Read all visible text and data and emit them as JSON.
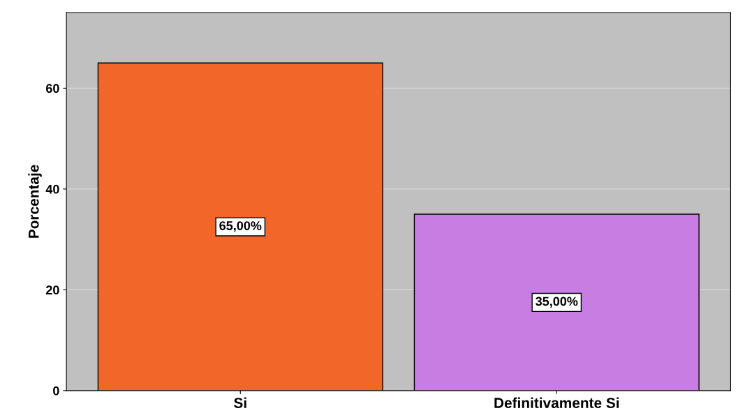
{
  "chart_data": {
    "type": "bar",
    "ylabel": "Porcentaje",
    "categories": [
      "Si",
      "Definitivamente Si"
    ],
    "values": [
      65,
      35
    ],
    "colors": [
      "#f26629",
      "#c87de3"
    ],
    "value_labels": [
      "65,00%",
      "35,00%"
    ],
    "ylim": [
      0,
      75
    ],
    "yticks": [
      0,
      20,
      40,
      60
    ],
    "grid": "y"
  }
}
